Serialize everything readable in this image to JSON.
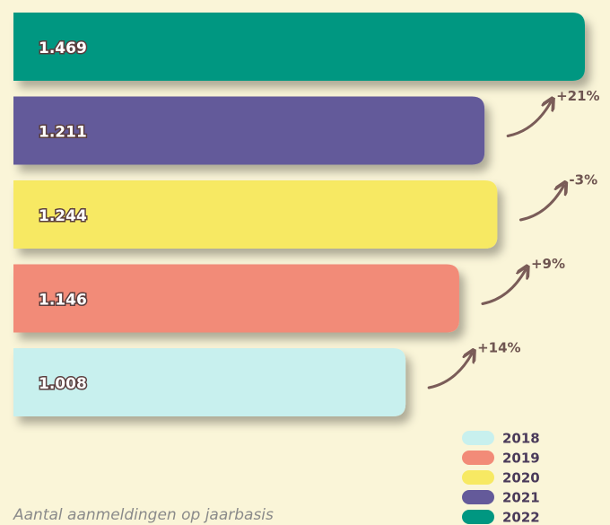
{
  "chart_data": {
    "type": "bar",
    "orientation": "horizontal",
    "caption": "Aantal aanmeldingen op jaarbasis",
    "categories": [
      "2018",
      "2019",
      "2020",
      "2021",
      "2022"
    ],
    "values": [
      1008,
      1146,
      1244,
      1211,
      1469
    ],
    "value_labels": [
      "1.008",
      "1.146",
      "1.244",
      "1.211",
      "1.469"
    ],
    "colors": [
      "#c8f0ee",
      "#f28b78",
      "#f7e963",
      "#645a9a",
      "#009781"
    ],
    "annotations": [
      "+14%",
      "+9%",
      "-3%",
      "+21%"
    ]
  }
}
